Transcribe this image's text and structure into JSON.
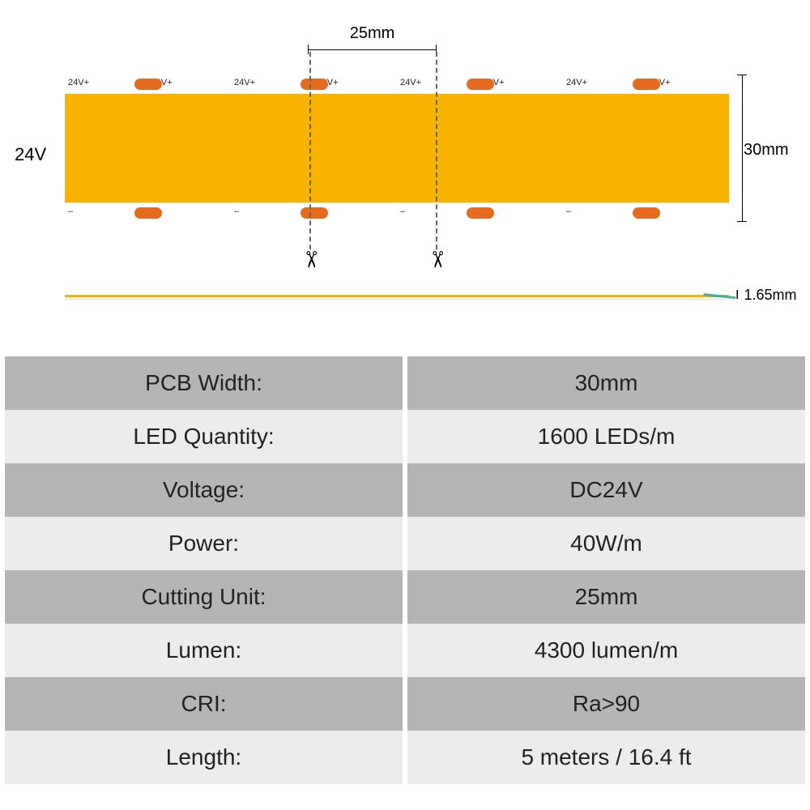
{
  "diagram": {
    "voltage_label": "24V",
    "cut_width_label": "25mm",
    "strip_height_label": "30mm",
    "thickness_label": "1.65mm",
    "rail_top_label": "24V+",
    "rail_bot_label": "–",
    "segment_count": 8,
    "colors": {
      "strip_body": "#f7b300",
      "pad": "#e56b1f",
      "profile_accent": "#39b0a8",
      "table_dark": "#b5b5b5",
      "table_light": "#ececec",
      "text": "#222222"
    }
  },
  "table": {
    "rows": [
      {
        "label": "PCB Width:",
        "value": "30mm",
        "shade": "dark"
      },
      {
        "label": "LED Quantity:",
        "value": "1600 LEDs/m",
        "shade": "light"
      },
      {
        "label": "Voltage:",
        "value": "DC24V",
        "shade": "dark"
      },
      {
        "label": "Power:",
        "value": "40W/m",
        "shade": "light"
      },
      {
        "label": "Cutting Unit:",
        "value": "25mm",
        "shade": "dark"
      },
      {
        "label": "Lumen:",
        "value": "4300 lumen/m",
        "shade": "light"
      },
      {
        "label": "CRI:",
        "value": "Ra>90",
        "shade": "dark"
      },
      {
        "label": "Length:",
        "value": "5 meters / 16.4 ft",
        "shade": "light"
      }
    ]
  }
}
